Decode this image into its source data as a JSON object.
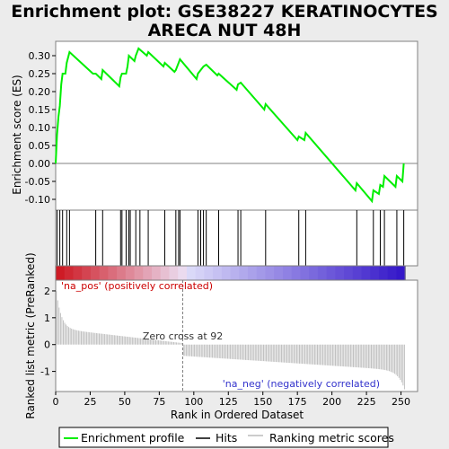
{
  "title_line1": "Enrichment plot: GSE38227 KERATINOCYTES",
  "title_line2": "ARECA NUT 48H",
  "chart_data": {
    "type": "line",
    "x_label": "Rank in Ordered Dataset",
    "es_axis": {
      "label": "Enrichment score (ES)",
      "ylim": [
        -0.13,
        0.34
      ],
      "ticks": [
        -0.1,
        -0.05,
        0.0,
        0.05,
        0.1,
        0.15,
        0.2,
        0.25,
        0.3
      ],
      "tick_labels": [
        "-0.10",
        "-0.05",
        "0.00",
        "0.05",
        "0.10",
        "0.15",
        "0.20",
        "0.25",
        "0.30"
      ]
    },
    "metric_axis": {
      "label": "Ranked list metric (PreRanked)",
      "ylim": [
        -1.75,
        2.4
      ],
      "ticks": [
        -1,
        0,
        1,
        2
      ],
      "tick_labels": [
        "-1",
        "0",
        "1",
        "2"
      ]
    },
    "x_axis": {
      "xlim": [
        0,
        262
      ],
      "ticks": [
        0,
        25,
        50,
        75,
        100,
        125,
        150,
        175,
        200,
        225,
        250
      ],
      "tick_labels": [
        "0",
        "25",
        "50",
        "75",
        "100",
        "125",
        "150",
        "175",
        "200",
        "225",
        "250"
      ]
    },
    "n_genes": 253,
    "zero_cross": 92,
    "zero_cross_label": "Zero cross at 92",
    "pos_label": "'na_pos' (positively correlated)",
    "neg_label": "'na_neg' (negatively correlated)",
    "hits": [
      1,
      3,
      5,
      8,
      10,
      29,
      34,
      47,
      48,
      51,
      53,
      54,
      58,
      61,
      67,
      79,
      87,
      89,
      90,
      103,
      105,
      107,
      109,
      118,
      132,
      134,
      152,
      176,
      181,
      218,
      230,
      235,
      238,
      247,
      252
    ],
    "series": [
      {
        "name": "Enrichment profile",
        "color": "#00ee00",
        "points": [
          [
            0,
            0.0
          ],
          [
            1,
            0.08
          ],
          [
            2,
            0.13
          ],
          [
            3,
            0.16
          ],
          [
            4,
            0.22
          ],
          [
            5,
            0.25
          ],
          [
            7,
            0.25
          ],
          [
            8,
            0.28
          ],
          [
            10,
            0.31
          ],
          [
            27,
            0.25
          ],
          [
            29,
            0.25
          ],
          [
            33,
            0.235
          ],
          [
            34,
            0.26
          ],
          [
            46,
            0.215
          ],
          [
            47,
            0.24
          ],
          [
            48,
            0.25
          ],
          [
            51,
            0.25
          ],
          [
            52,
            0.27
          ],
          [
            53,
            0.3
          ],
          [
            57,
            0.285
          ],
          [
            58,
            0.3
          ],
          [
            60,
            0.32
          ],
          [
            66,
            0.3
          ],
          [
            67,
            0.31
          ],
          [
            78,
            0.27
          ],
          [
            79,
            0.28
          ],
          [
            86,
            0.255
          ],
          [
            87,
            0.26
          ],
          [
            89,
            0.28
          ],
          [
            90,
            0.29
          ],
          [
            102,
            0.235
          ],
          [
            103,
            0.25
          ],
          [
            105,
            0.26
          ],
          [
            107,
            0.27
          ],
          [
            109,
            0.275
          ],
          [
            117,
            0.245
          ],
          [
            118,
            0.25
          ],
          [
            131,
            0.205
          ],
          [
            132,
            0.22
          ],
          [
            134,
            0.225
          ],
          [
            151,
            0.15
          ],
          [
            152,
            0.165
          ],
          [
            175,
            0.065
          ],
          [
            176,
            0.075
          ],
          [
            180,
            0.065
          ],
          [
            181,
            0.085
          ],
          [
            217,
            -0.075
          ],
          [
            218,
            -0.055
          ],
          [
            229,
            -0.105
          ],
          [
            230,
            -0.075
          ],
          [
            234,
            -0.085
          ],
          [
            235,
            -0.06
          ],
          [
            237,
            -0.065
          ],
          [
            238,
            -0.035
          ],
          [
            246,
            -0.065
          ],
          [
            247,
            -0.035
          ],
          [
            251,
            -0.05
          ],
          [
            252,
            0.0
          ]
        ]
      }
    ],
    "legend": [
      {
        "label": "Enrichment profile",
        "color": "#00ee00"
      },
      {
        "label": "Hits",
        "color": "#000000"
      },
      {
        "label": "Ranking metric scores",
        "color": "#bbbbbb"
      }
    ]
  }
}
